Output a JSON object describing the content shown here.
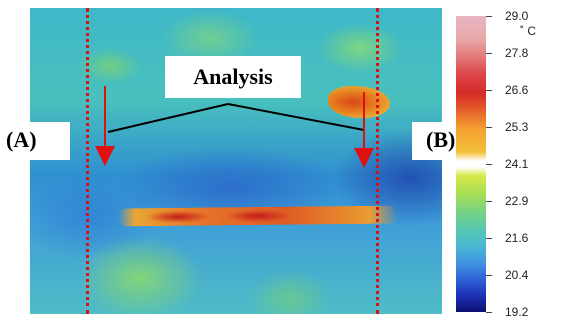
{
  "annotation": {
    "center_label": "Analysis",
    "left_label": "(A)",
    "right_label": "(B)"
  },
  "scale": {
    "unit": "˚ C",
    "max": "29.0",
    "values": [
      "29.0",
      "27.8",
      "26.6",
      "25.3",
      "24.1",
      "22.9",
      "21.6",
      "20.4",
      "19.2"
    ]
  },
  "colors": {
    "marker_red": "#e01010",
    "line_black": "#000000"
  },
  "icons": {
    "arrow": "down-arrow-icon"
  }
}
